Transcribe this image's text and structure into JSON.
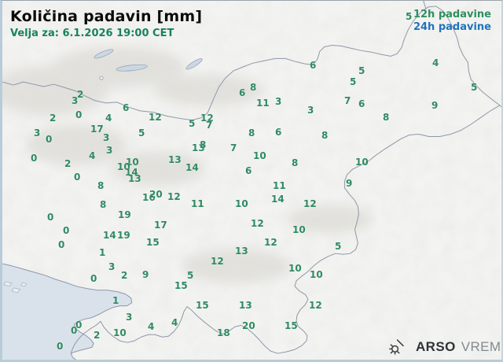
{
  "header": {
    "title": "Količina padavin [mm]",
    "valid": "Velja za: 6.1.2026 19:00 CET"
  },
  "legend": {
    "item_12h": "12h padavine",
    "item_24h": "24h padavine"
  },
  "branding": {
    "arso": "ARSO",
    "vreme": "VREME"
  },
  "colors": {
    "station_value": "#2f8a63",
    "legend_12h": "#2e9061",
    "legend_24h": "#1f74bd",
    "subtitle_green": "#17825f",
    "sea": "#d9e2ea",
    "border_line": "#8e97a9",
    "land": "#f3f3f1"
  },
  "map_data": {
    "type": "station-values",
    "unit": "mm",
    "description": "12h precipitation totals plotted at station locations over Slovenia",
    "stations": [
      [
        2,
        95,
        113
      ],
      [
        3,
        88,
        121
      ],
      [
        0,
        93,
        139
      ],
      [
        2,
        60,
        143
      ],
      [
        3,
        40,
        162
      ],
      [
        0,
        55,
        170
      ],
      [
        0,
        36,
        194
      ],
      [
        2,
        79,
        201
      ],
      [
        0,
        91,
        218
      ],
      [
        0,
        57,
        269
      ],
      [
        6,
        153,
        130
      ],
      [
        4,
        131,
        143
      ],
      [
        17,
        112,
        157
      ],
      [
        3,
        128,
        168
      ],
      [
        3,
        132,
        184
      ],
      [
        4,
        110,
        191
      ],
      [
        12,
        186,
        142
      ],
      [
        5,
        173,
        162
      ],
      [
        12,
        252,
        143
      ],
      [
        5,
        237,
        150
      ],
      [
        7,
        259,
        152
      ],
      [
        6,
        301,
        111
      ],
      [
        8,
        315,
        104
      ],
      [
        11,
        323,
        124
      ],
      [
        3,
        347,
        122
      ],
      [
        3,
        388,
        133
      ],
      [
        8,
        313,
        162
      ],
      [
        6,
        347,
        161
      ],
      [
        8,
        406,
        165
      ],
      [
        6,
        391,
        76
      ],
      [
        5,
        453,
        83
      ],
      [
        5,
        442,
        97
      ],
      [
        4,
        547,
        73
      ],
      [
        5,
        596,
        104
      ],
      [
        9,
        546,
        127
      ],
      [
        5,
        513,
        14
      ],
      [
        7,
        435,
        121
      ],
      [
        6,
        453,
        125
      ],
      [
        8,
        484,
        142
      ],
      [
        13,
        241,
        181
      ],
      [
        8,
        251,
        177
      ],
      [
        7,
        290,
        181
      ],
      [
        10,
        319,
        191
      ],
      [
        14,
        233,
        206
      ],
      [
        6,
        309,
        210
      ],
      [
        13,
        211,
        196
      ],
      [
        10,
        157,
        199
      ],
      [
        10,
        146,
        205
      ],
      [
        14,
        156,
        212
      ],
      [
        13,
        160,
        220
      ],
      [
        8,
        121,
        229
      ],
      [
        8,
        124,
        253
      ],
      [
        19,
        147,
        266
      ],
      [
        16,
        178,
        244
      ],
      [
        20,
        187,
        240
      ],
      [
        12,
        210,
        243
      ],
      [
        11,
        240,
        252
      ],
      [
        10,
        296,
        252
      ],
      [
        8,
        368,
        200
      ],
      [
        10,
        449,
        199
      ],
      [
        9,
        437,
        226
      ],
      [
        11,
        344,
        229
      ],
      [
        14,
        342,
        246
      ],
      [
        12,
        383,
        252
      ],
      [
        12,
        316,
        277
      ],
      [
        17,
        193,
        279
      ],
      [
        14,
        128,
        292
      ],
      [
        19,
        146,
        292
      ],
      [
        15,
        183,
        301
      ],
      [
        1,
        123,
        314
      ],
      [
        3,
        135,
        332
      ],
      [
        2,
        151,
        343
      ],
      [
        9,
        178,
        342
      ],
      [
        0,
        112,
        347
      ],
      [
        5,
        235,
        343
      ],
      [
        15,
        219,
        356
      ],
      [
        1,
        140,
        375
      ],
      [
        13,
        296,
        312
      ],
      [
        12,
        265,
        325
      ],
      [
        15,
        246,
        381
      ],
      [
        13,
        301,
        381
      ],
      [
        10,
        369,
        285
      ],
      [
        12,
        333,
        301
      ],
      [
        5,
        423,
        306
      ],
      [
        10,
        364,
        334
      ],
      [
        10,
        391,
        342
      ],
      [
        12,
        390,
        381
      ],
      [
        15,
        359,
        407
      ],
      [
        0,
        77,
        286
      ],
      [
        0,
        71,
        304
      ],
      [
        3,
        157,
        396
      ],
      [
        4,
        185,
        408
      ],
      [
        4,
        215,
        403
      ],
      [
        0,
        93,
        406
      ],
      [
        0,
        87,
        413
      ],
      [
        2,
        116,
        419
      ],
      [
        10,
        141,
        416
      ],
      [
        0,
        69,
        433
      ],
      [
        18,
        273,
        416
      ],
      [
        20,
        305,
        407
      ]
    ]
  }
}
